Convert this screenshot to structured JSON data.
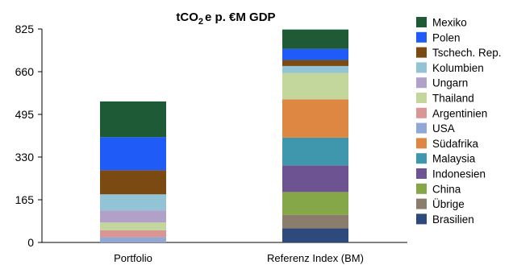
{
  "chart_data": {
    "type": "bar",
    "stacked": true,
    "title_parts": [
      "tCO",
      "2",
      "e p. €M GDP"
    ],
    "title": "tCO2e p. €M GDP",
    "xlabel": "",
    "ylabel": "",
    "ylim": [
      0,
      825
    ],
    "yticks": [
      "0",
      "165",
      "330",
      "495",
      "660",
      "825"
    ],
    "grid": false,
    "legend_position": "right",
    "categories": [
      "Portfolio",
      "Referenz Index (BM)"
    ],
    "series": [
      {
        "name": "Brasilien",
        "color": "#2e4a7c",
        "values": [
          0,
          55
        ]
      },
      {
        "name": "Übrige",
        "color": "#8b7d6b",
        "values": [
          0,
          52
        ]
      },
      {
        "name": "China",
        "color": "#86a747",
        "values": [
          0,
          88
        ]
      },
      {
        "name": "Indonesien",
        "color": "#6d5391",
        "values": [
          0,
          103
        ]
      },
      {
        "name": "Malaysia",
        "color": "#3f97ad",
        "values": [
          0,
          107
        ]
      },
      {
        "name": "Südafrika",
        "color": "#dd8742",
        "values": [
          0,
          148
        ]
      },
      {
        "name": "USA",
        "color": "#8fa9d4",
        "values": [
          20,
          0
        ]
      },
      {
        "name": "Argentinien",
        "color": "#d99694",
        "values": [
          27,
          0
        ]
      },
      {
        "name": "Thailand",
        "color": "#c3d69b",
        "values": [
          30,
          102
        ]
      },
      {
        "name": "Ungarn",
        "color": "#b1a0c7",
        "values": [
          47,
          0
        ]
      },
      {
        "name": "Kolumbien",
        "color": "#93c4d6",
        "values": [
          62,
          27
        ]
      },
      {
        "name": "Tschech. Rep.",
        "color": "#7a4a12",
        "values": [
          93,
          23
        ]
      },
      {
        "name": "Polen",
        "color": "#1f5bf7",
        "values": [
          128,
          43
        ]
      },
      {
        "name": "Mexiko",
        "color": "#1d5a35",
        "values": [
          138,
          75
        ]
      }
    ],
    "legend_order": [
      "Mexiko",
      "Polen",
      "Tschech. Rep.",
      "Kolumbien",
      "Ungarn",
      "Thailand",
      "Argentinien",
      "USA",
      "Südafrika",
      "Malaysia",
      "Indonesien",
      "China",
      "Übrige",
      "Brasilien"
    ]
  }
}
